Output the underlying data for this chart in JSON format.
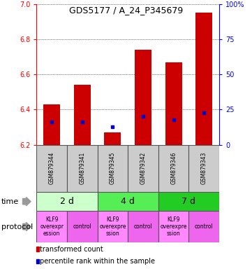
{
  "title": "GDS5177 / A_24_P345679",
  "samples": [
    "GSM879344",
    "GSM879341",
    "GSM879345",
    "GSM879342",
    "GSM879346",
    "GSM879343"
  ],
  "bar_tops": [
    6.43,
    6.54,
    6.27,
    6.74,
    6.67,
    6.95
  ],
  "bar_bottoms": [
    6.2,
    6.2,
    6.2,
    6.2,
    6.2,
    6.2
  ],
  "blue_values": [
    6.33,
    6.33,
    6.3,
    6.36,
    6.34,
    6.38
  ],
  "ylim": [
    6.2,
    7.0
  ],
  "yticks": [
    6.2,
    6.4,
    6.6,
    6.8,
    7.0
  ],
  "y2lim": [
    0,
    100
  ],
  "y2ticks": [
    0,
    25,
    50,
    75,
    100
  ],
  "bar_color": "#cc0000",
  "blue_color": "#0000cc",
  "sample_bg": "#cccccc",
  "time_groups": [
    {
      "label": "2 d",
      "start": 0,
      "end": 2,
      "color": "#ccffcc"
    },
    {
      "label": "4 d",
      "start": 2,
      "end": 4,
      "color": "#55ee55"
    },
    {
      "label": "7 d",
      "start": 4,
      "end": 6,
      "color": "#22cc22"
    }
  ],
  "protocol_groups": [
    {
      "label": "KLF9\noverexpr\nession",
      "start": 0,
      "end": 1,
      "color": "#ff88ff"
    },
    {
      "label": "control",
      "start": 1,
      "end": 2,
      "color": "#ee66ee"
    },
    {
      "label": "KLF9\noverexpre\nssion",
      "start": 2,
      "end": 3,
      "color": "#ff88ff"
    },
    {
      "label": "control",
      "start": 3,
      "end": 4,
      "color": "#ee66ee"
    },
    {
      "label": "KLF9\noverexpre\nssion",
      "start": 4,
      "end": 5,
      "color": "#ff88ff"
    },
    {
      "label": "control",
      "start": 5,
      "end": 6,
      "color": "#ee66ee"
    }
  ],
  "legend_red": "transformed count",
  "legend_blue": "percentile rank within the sample",
  "label_fontsize": 8,
  "tick_fontsize": 7,
  "sample_fontsize": 5.5,
  "time_fontsize": 9,
  "protocol_fontsize": 5.5
}
